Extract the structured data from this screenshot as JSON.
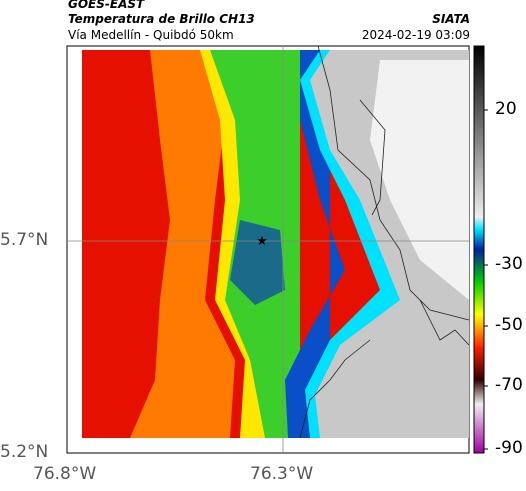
{
  "header": {
    "source": "GOES-EAST",
    "title": "Temperatura de Brillo CH13",
    "subtitle": "Vía Medellín - Quibdó 50km",
    "agency": "SIATA",
    "timestamp": "2024-02-19 03:09"
  },
  "map": {
    "y_labels": [
      "5.7°N",
      "5.2°N"
    ],
    "x_labels": [
      "76.8°W",
      "76.3°W"
    ]
  },
  "colorbar": {
    "ticks": [
      20,
      -30,
      -50,
      -70,
      -90
    ]
  }
}
